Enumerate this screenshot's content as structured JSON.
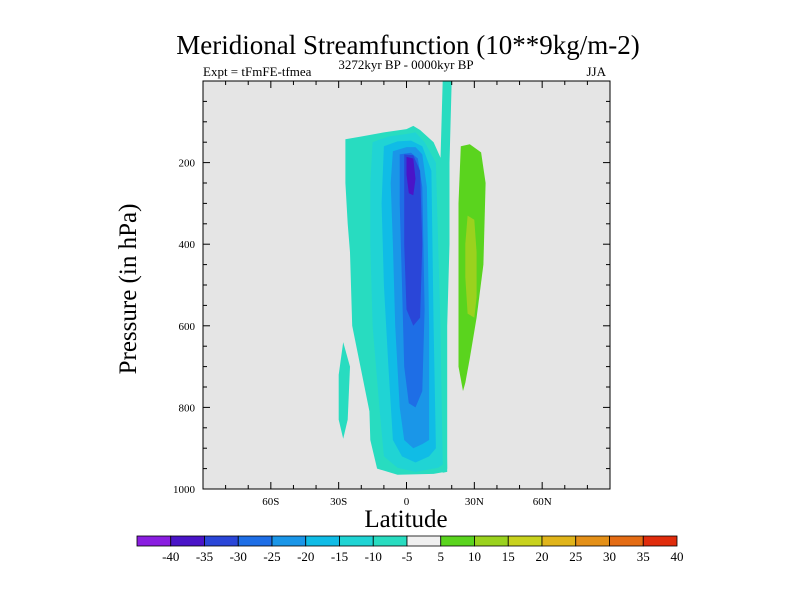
{
  "chart_data": {
    "type": "contour",
    "title": "Meridional Streamfunction (10**9kg/m-2)",
    "subtitle_left": "Expt = tFmFE-tfmea",
    "subtitle_center": "3272kyr BP - 0000kyr BP",
    "subtitle_right": "JJA",
    "xlabel": "Latitude",
    "ylabel": "Pressure (in hPa)",
    "xlim": [
      -90,
      90
    ],
    "ylim": [
      0,
      1000
    ],
    "x_ticks": [
      {
        "value": -60,
        "label": "60S"
      },
      {
        "value": -30,
        "label": "30S"
      },
      {
        "value": 0,
        "label": "0"
      },
      {
        "value": 30,
        "label": "30N"
      },
      {
        "value": 60,
        "label": "60N"
      }
    ],
    "y_ticks": [
      {
        "value": 200,
        "label": "200"
      },
      {
        "value": 400,
        "label": "400"
      },
      {
        "value": 600,
        "label": "600"
      },
      {
        "value": 800,
        "label": "800"
      },
      {
        "value": 1000,
        "label": "1000"
      }
    ],
    "background_color": "#e5e5e5",
    "colorbar": {
      "labels": [
        "-40",
        "-35",
        "-30",
        "-25",
        "-20",
        "-15",
        "-10",
        "-5",
        "5",
        "10",
        "15",
        "20",
        "25",
        "30",
        "35",
        "40"
      ],
      "colors": [
        "#8a1ee0",
        "#4a14c8",
        "#2a46d8",
        "#1e6ee6",
        "#1a96e8",
        "#10bce6",
        "#20d4d4",
        "#28dcc0",
        "#f0f0f0",
        "#5ad41e",
        "#9ad21e",
        "#c8d21e",
        "#e0b41a",
        "#e49018",
        "#e46c14",
        "#e02c0c"
      ]
    },
    "regions": [
      {
        "level": "-5",
        "color": "#28dcc0",
        "points": [
          [
            -27,
            143
          ],
          [
            -20,
            136
          ],
          [
            -10,
            126
          ],
          [
            0,
            118
          ],
          [
            3,
            110
          ],
          [
            6,
            120
          ],
          [
            12,
            150
          ],
          [
            16,
            200
          ],
          [
            17,
            600
          ],
          [
            18,
            950
          ],
          [
            17,
            958
          ],
          [
            12,
            963
          ],
          [
            -4,
            965
          ],
          [
            -13,
            950
          ],
          [
            -16,
            880
          ],
          [
            -17,
            700
          ],
          [
            -19,
            550
          ],
          [
            -15,
            700
          ],
          [
            -14,
            810
          ],
          [
            -16,
            820
          ],
          [
            -24,
            600
          ],
          [
            -25,
            420
          ],
          [
            -26,
            350
          ],
          [
            -27,
            250
          ]
        ]
      },
      {
        "level": "-5",
        "color": "#28dcc0",
        "points": [
          [
            -28,
            640
          ],
          [
            -25,
            700
          ],
          [
            -26,
            830
          ],
          [
            -28,
            877
          ],
          [
            -30,
            830
          ],
          [
            -30,
            720
          ]
        ]
      },
      {
        "level": "-5",
        "color": "#28dcc0",
        "points": [
          [
            16,
            0
          ],
          [
            20,
            0
          ],
          [
            19,
            200
          ],
          [
            19,
            400
          ],
          [
            18,
            600
          ],
          [
            18,
            800
          ],
          [
            18,
            958
          ],
          [
            16,
            960
          ],
          [
            15,
            700
          ],
          [
            15,
            400
          ],
          [
            15,
            200
          ]
        ]
      },
      {
        "level": "-10",
        "color": "#20d4d4",
        "points": [
          [
            -15,
            150
          ],
          [
            -8,
            136
          ],
          [
            0,
            130
          ],
          [
            4,
            126
          ],
          [
            8,
            150
          ],
          [
            13,
            200
          ],
          [
            15,
            600
          ],
          [
            16,
            940
          ],
          [
            14,
            948
          ],
          [
            4,
            958
          ],
          [
            -4,
            948
          ],
          [
            -10,
            920
          ],
          [
            -12,
            800
          ],
          [
            -15,
            600
          ],
          [
            -16,
            400
          ],
          [
            -16,
            250
          ]
        ]
      },
      {
        "level": "-15",
        "color": "#10bce6",
        "points": [
          [
            -10,
            160
          ],
          [
            -4,
            148
          ],
          [
            2,
            146
          ],
          [
            7,
            160
          ],
          [
            11,
            220
          ],
          [
            12,
            600
          ],
          [
            13,
            900
          ],
          [
            10,
            920
          ],
          [
            4,
            935
          ],
          [
            -2,
            920
          ],
          [
            -6,
            880
          ],
          [
            -8,
            700
          ],
          [
            -10,
            500
          ],
          [
            -11,
            300
          ]
        ]
      },
      {
        "level": "-20",
        "color": "#1a96e8",
        "points": [
          [
            -6,
            172
          ],
          [
            0,
            162
          ],
          [
            4,
            162
          ],
          [
            7,
            180
          ],
          [
            9,
            260
          ],
          [
            10,
            600
          ],
          [
            10,
            880
          ],
          [
            7,
            890
          ],
          [
            3,
            900
          ],
          [
            -1,
            880
          ],
          [
            -3,
            800
          ],
          [
            -5,
            600
          ],
          [
            -6,
            400
          ],
          [
            -7,
            250
          ]
        ]
      },
      {
        "level": "-25",
        "color": "#1e6ee6",
        "points": [
          [
            -3,
            180
          ],
          [
            2,
            176
          ],
          [
            5,
            190
          ],
          [
            7,
            260
          ],
          [
            8,
            560
          ],
          [
            7,
            760
          ],
          [
            4,
            800
          ],
          [
            1,
            790
          ],
          [
            -1,
            700
          ],
          [
            -2,
            500
          ],
          [
            -3,
            300
          ]
        ]
      },
      {
        "level": "-30",
        "color": "#2a46d8",
        "points": [
          [
            -1,
            180
          ],
          [
            3,
            182
          ],
          [
            6,
            220
          ],
          [
            7,
            400
          ],
          [
            6,
            580
          ],
          [
            3,
            600
          ],
          [
            0,
            560
          ],
          [
            -1,
            400
          ],
          [
            -1,
            250
          ]
        ]
      },
      {
        "level": "-35",
        "color": "#4a14c8",
        "points": [
          [
            0,
            186
          ],
          [
            3,
            190
          ],
          [
            4,
            240
          ],
          [
            3,
            280
          ],
          [
            1,
            275
          ],
          [
            0,
            230
          ]
        ]
      },
      {
        "level": "5",
        "color": "#5ad41e",
        "points": [
          [
            24,
            160
          ],
          [
            28,
            155
          ],
          [
            33,
            175
          ],
          [
            35,
            250
          ],
          [
            34,
            450
          ],
          [
            31,
            580
          ],
          [
            28,
            680
          ],
          [
            26,
            740
          ],
          [
            25,
            760
          ],
          [
            23,
            700
          ],
          [
            23,
            500
          ],
          [
            23,
            300
          ]
        ]
      },
      {
        "level": "10",
        "color": "#9ad21e",
        "points": [
          [
            27,
            330
          ],
          [
            30,
            340
          ],
          [
            31,
            420
          ],
          [
            31,
            530
          ],
          [
            30,
            580
          ],
          [
            27,
            570
          ],
          [
            26,
            480
          ],
          [
            26,
            400
          ]
        ]
      }
    ]
  }
}
